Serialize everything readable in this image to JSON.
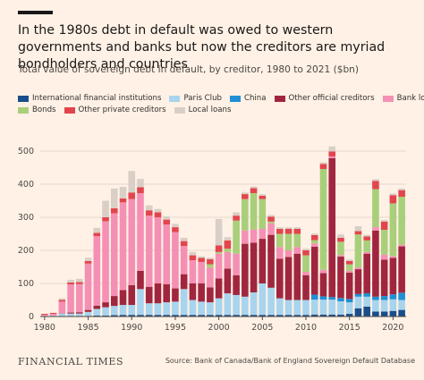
{
  "header": {
    "title": "In the 1980s debt in default was owed to western governments and banks but now the creditors are myriad bondholders and countries",
    "subtitle": "Total value of sovereign debt in default, by creditor, 1980 to 2021 ($bn)"
  },
  "footer": {
    "brand": "FINANCIAL TIMES",
    "source": "Source: Bank of Canada/Bank of England Sovereign Default Database"
  },
  "colors": {
    "background": "#fff1e5",
    "grid": "#e4d8ce",
    "axis": "#4d4845"
  },
  "chart_data": {
    "type": "bar",
    "stacked": true,
    "x": [
      1980,
      1981,
      1982,
      1983,
      1984,
      1985,
      1986,
      1987,
      1988,
      1989,
      1990,
      1991,
      1992,
      1993,
      1994,
      1995,
      1996,
      1997,
      1998,
      1999,
      2000,
      2001,
      2002,
      2003,
      2004,
      2005,
      2006,
      2007,
      2008,
      2009,
      2010,
      2011,
      2012,
      2013,
      2014,
      2015,
      2016,
      2017,
      2018,
      2019,
      2020,
      2021
    ],
    "xticks": [
      "1980",
      "1985",
      "1990",
      "1995",
      "2000",
      "2005",
      "2010",
      "2015",
      "2020"
    ],
    "ylim": [
      0,
      520
    ],
    "yticks": [
      "0",
      "100",
      "200",
      "300",
      "400",
      "500"
    ],
    "grid": true,
    "legend_position": "top",
    "series": [
      {
        "name": "International financial institutions",
        "color": "#1a4e8a",
        "values": [
          0,
          0,
          1,
          2,
          2,
          2,
          3,
          3,
          4,
          5,
          5,
          5,
          5,
          5,
          5,
          5,
          5,
          5,
          5,
          5,
          5,
          5,
          5,
          5,
          5,
          5,
          5,
          5,
          5,
          5,
          5,
          6,
          6,
          6,
          6,
          8,
          25,
          30,
          15,
          15,
          17,
          20
        ]
      },
      {
        "name": "Paris Club",
        "color": "#a8d4ee",
        "values": [
          2,
          3,
          8,
          7,
          7,
          12,
          20,
          25,
          28,
          30,
          30,
          78,
          35,
          35,
          38,
          40,
          78,
          45,
          40,
          38,
          50,
          65,
          60,
          55,
          68,
          95,
          82,
          50,
          45,
          45,
          45,
          45,
          45,
          45,
          40,
          35,
          35,
          30,
          35,
          35,
          35,
          30
        ]
      },
      {
        "name": "China",
        "color": "#1f8fd6",
        "values": [
          0,
          0,
          0,
          0,
          0,
          0,
          0,
          0,
          0,
          0,
          0,
          0,
          0,
          0,
          0,
          0,
          0,
          0,
          0,
          0,
          0,
          0,
          0,
          0,
          0,
          0,
          0,
          0,
          0,
          0,
          0,
          15,
          10,
          8,
          10,
          10,
          8,
          10,
          10,
          12,
          15,
          22
        ]
      },
      {
        "name": "Other official creditors",
        "color": "#a0263f",
        "values": [
          0,
          0,
          1,
          3,
          4,
          6,
          10,
          15,
          30,
          45,
          60,
          55,
          50,
          60,
          55,
          40,
          45,
          50,
          55,
          45,
          60,
          75,
          60,
          160,
          150,
          135,
          160,
          120,
          130,
          140,
          75,
          145,
          70,
          420,
          125,
          80,
          75,
          120,
          200,
          110,
          110,
          140
        ]
      },
      {
        "name": "Bank loans",
        "color": "#f590b5",
        "values": [
          3,
          5,
          35,
          85,
          85,
          140,
          210,
          245,
          250,
          265,
          260,
          235,
          215,
          200,
          180,
          170,
          85,
          70,
          65,
          60,
          75,
          50,
          65,
          40,
          40,
          30,
          35,
          35,
          20,
          20,
          10,
          10,
          10,
          5,
          5,
          5,
          5,
          5,
          10,
          15,
          5,
          5
        ]
      },
      {
        "name": "Bonds",
        "color": "#a9cf7a",
        "values": [
          0,
          0,
          0,
          0,
          0,
          0,
          0,
          0,
          0,
          0,
          0,
          0,
          0,
          0,
          0,
          0,
          0,
          0,
          0,
          10,
          5,
          10,
          100,
          95,
          110,
          90,
          5,
          40,
          50,
          40,
          50,
          10,
          305,
          0,
          40,
          20,
          100,
          35,
          115,
          75,
          160,
          145
        ]
      },
      {
        "name": "Other private creditors",
        "color": "#e2454d",
        "values": [
          3,
          3,
          5,
          6,
          6,
          8,
          10,
          12,
          15,
          12,
          20,
          18,
          16,
          15,
          15,
          15,
          15,
          15,
          12,
          15,
          20,
          25,
          15,
          15,
          15,
          10,
          15,
          15,
          15,
          15,
          15,
          15,
          15,
          15,
          12,
          10,
          10,
          12,
          25,
          25,
          25,
          20
        ]
      },
      {
        "name": "Local loans",
        "color": "#d9cfc7",
        "values": [
          0,
          0,
          5,
          8,
          10,
          10,
          15,
          50,
          60,
          35,
          65,
          25,
          15,
          10,
          10,
          10,
          10,
          10,
          5,
          5,
          80,
          10,
          10,
          5,
          5,
          5,
          5,
          5,
          5,
          5,
          5,
          5,
          5,
          15,
          10,
          5,
          15,
          5,
          5,
          5,
          5,
          5
        ]
      }
    ]
  }
}
